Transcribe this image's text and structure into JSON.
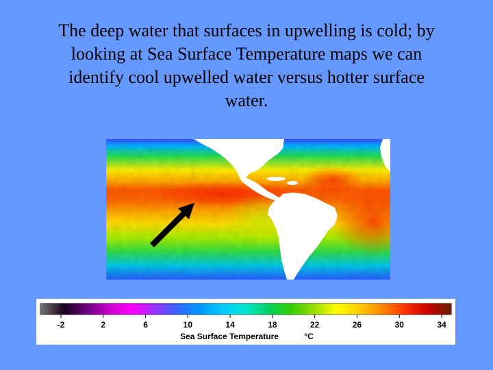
{
  "slide": {
    "title": "The deep water that surfaces in upwelling is cold; by\nlooking at Sea Surface Temperature maps we can\nidentify cool upwelled water versus hotter surface\nwater."
  },
  "map": {
    "land_color": "#ffffff",
    "arrow_color": "#000000",
    "icon": "upwelling-arrow-icon"
  },
  "legend": {
    "title": "Sea Surface Temperature",
    "unit": "°C",
    "ticks": [
      "-2",
      "2",
      "6",
      "10",
      "14",
      "18",
      "22",
      "26",
      "30",
      "34"
    ],
    "colors": [
      "#707070",
      "#1a001a",
      "#6a0080",
      "#cc00cc",
      "#ff00ff",
      "#9933ff",
      "#3366ff",
      "#0099ff",
      "#00ccff",
      "#00e6cc",
      "#00d060",
      "#33cc00",
      "#99dd00",
      "#ffff00",
      "#ffcc00",
      "#ff8800",
      "#ff3300",
      "#cc0000",
      "#6b1a00"
    ]
  },
  "colors": {
    "background": "#6699ff"
  }
}
